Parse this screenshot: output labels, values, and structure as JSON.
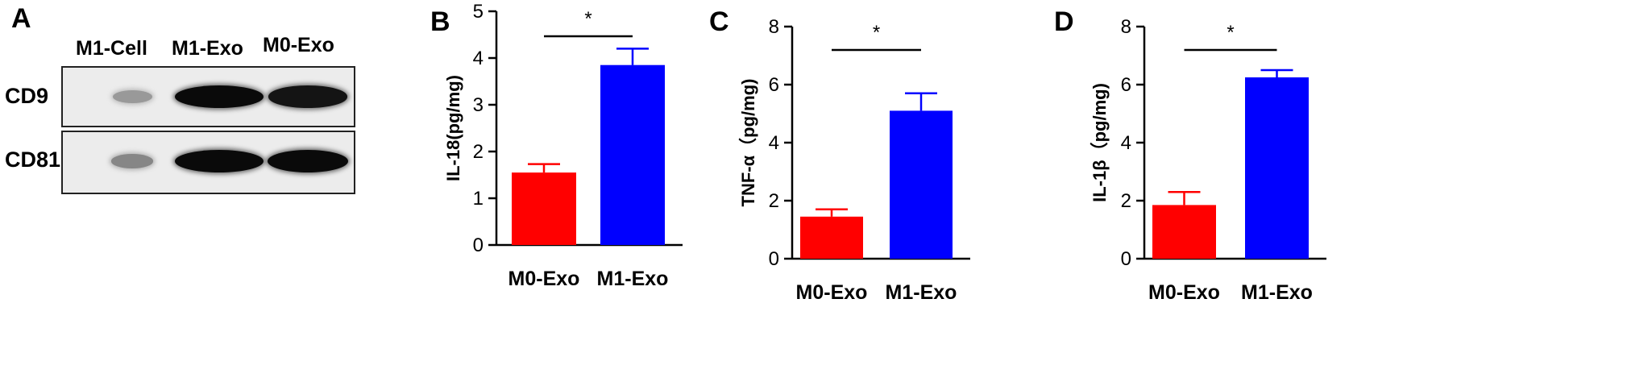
{
  "panel_a": {
    "letter": "A",
    "lanes": [
      "M1-Cell",
      "M1-Exo",
      "M0-Exo"
    ],
    "rows": [
      {
        "label": "CD9",
        "band_intensity": [
          0.25,
          1.0,
          0.95
        ]
      },
      {
        "label": "CD81",
        "band_intensity": [
          0.35,
          1.0,
          1.0
        ]
      }
    ]
  },
  "colors": {
    "m0": "#ff0000",
    "m1": "#0000ff",
    "axis": "#000000"
  },
  "chart_data": [
    {
      "id": "B",
      "type": "bar",
      "categories": [
        "M0-Exo",
        "M1-Exo"
      ],
      "values": [
        1.55,
        3.85
      ],
      "errors": [
        0.18,
        0.35
      ],
      "ylabel": "IL-18(pg/mg)",
      "ylim": [
        0,
        5
      ],
      "yticks": [
        0,
        1,
        2,
        3,
        4,
        5
      ],
      "significance": "*"
    },
    {
      "id": "C",
      "type": "bar",
      "categories": [
        "M0-Exo",
        "M1-Exo"
      ],
      "values": [
        1.45,
        5.1
      ],
      "errors": [
        0.25,
        0.6
      ],
      "ylabel": "TNF-α（pg/mg)",
      "ylim": [
        0,
        8
      ],
      "yticks": [
        0,
        2,
        4,
        6,
        8
      ],
      "significance": "*"
    },
    {
      "id": "D",
      "type": "bar",
      "categories": [
        "M0-Exo",
        "M1-Exo"
      ],
      "values": [
        1.85,
        6.25
      ],
      "errors": [
        0.45,
        0.25
      ],
      "ylabel": "IL-1β（pg/mg)",
      "ylim": [
        0,
        8
      ],
      "yticks": [
        0,
        2,
        4,
        6,
        8
      ],
      "significance": "*"
    }
  ]
}
